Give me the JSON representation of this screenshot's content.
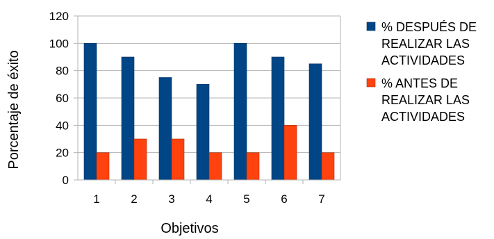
{
  "chart_data": {
    "type": "bar",
    "title": "",
    "xlabel": "Objetivos",
    "ylabel": "Porcentaje de éxito",
    "categories": [
      "1",
      "2",
      "3",
      "4",
      "5",
      "6",
      "7"
    ],
    "ylim": [
      0,
      120
    ],
    "yticks": [
      0,
      20,
      40,
      60,
      80,
      100,
      120
    ],
    "grid": true,
    "legend_position": "right",
    "series": [
      {
        "name": "% DESPUÉS DE REALIZAR LAS ACTIVIDADES",
        "legend_lines": [
          "% DESPUÉS DE",
          "REALIZAR LAS",
          "ACTIVIDADES"
        ],
        "color": "#004586",
        "values": [
          100,
          90,
          75,
          70,
          100,
          90,
          85
        ]
      },
      {
        "name": "% ANTES DE REALIZAR LAS ACTIVIDADES",
        "legend_lines": [
          "% ANTES DE",
          "REALIZAR LAS",
          "ACTIVIDADES"
        ],
        "color": "#ff420e",
        "values": [
          20,
          30,
          30,
          20,
          20,
          40,
          20
        ]
      }
    ]
  }
}
